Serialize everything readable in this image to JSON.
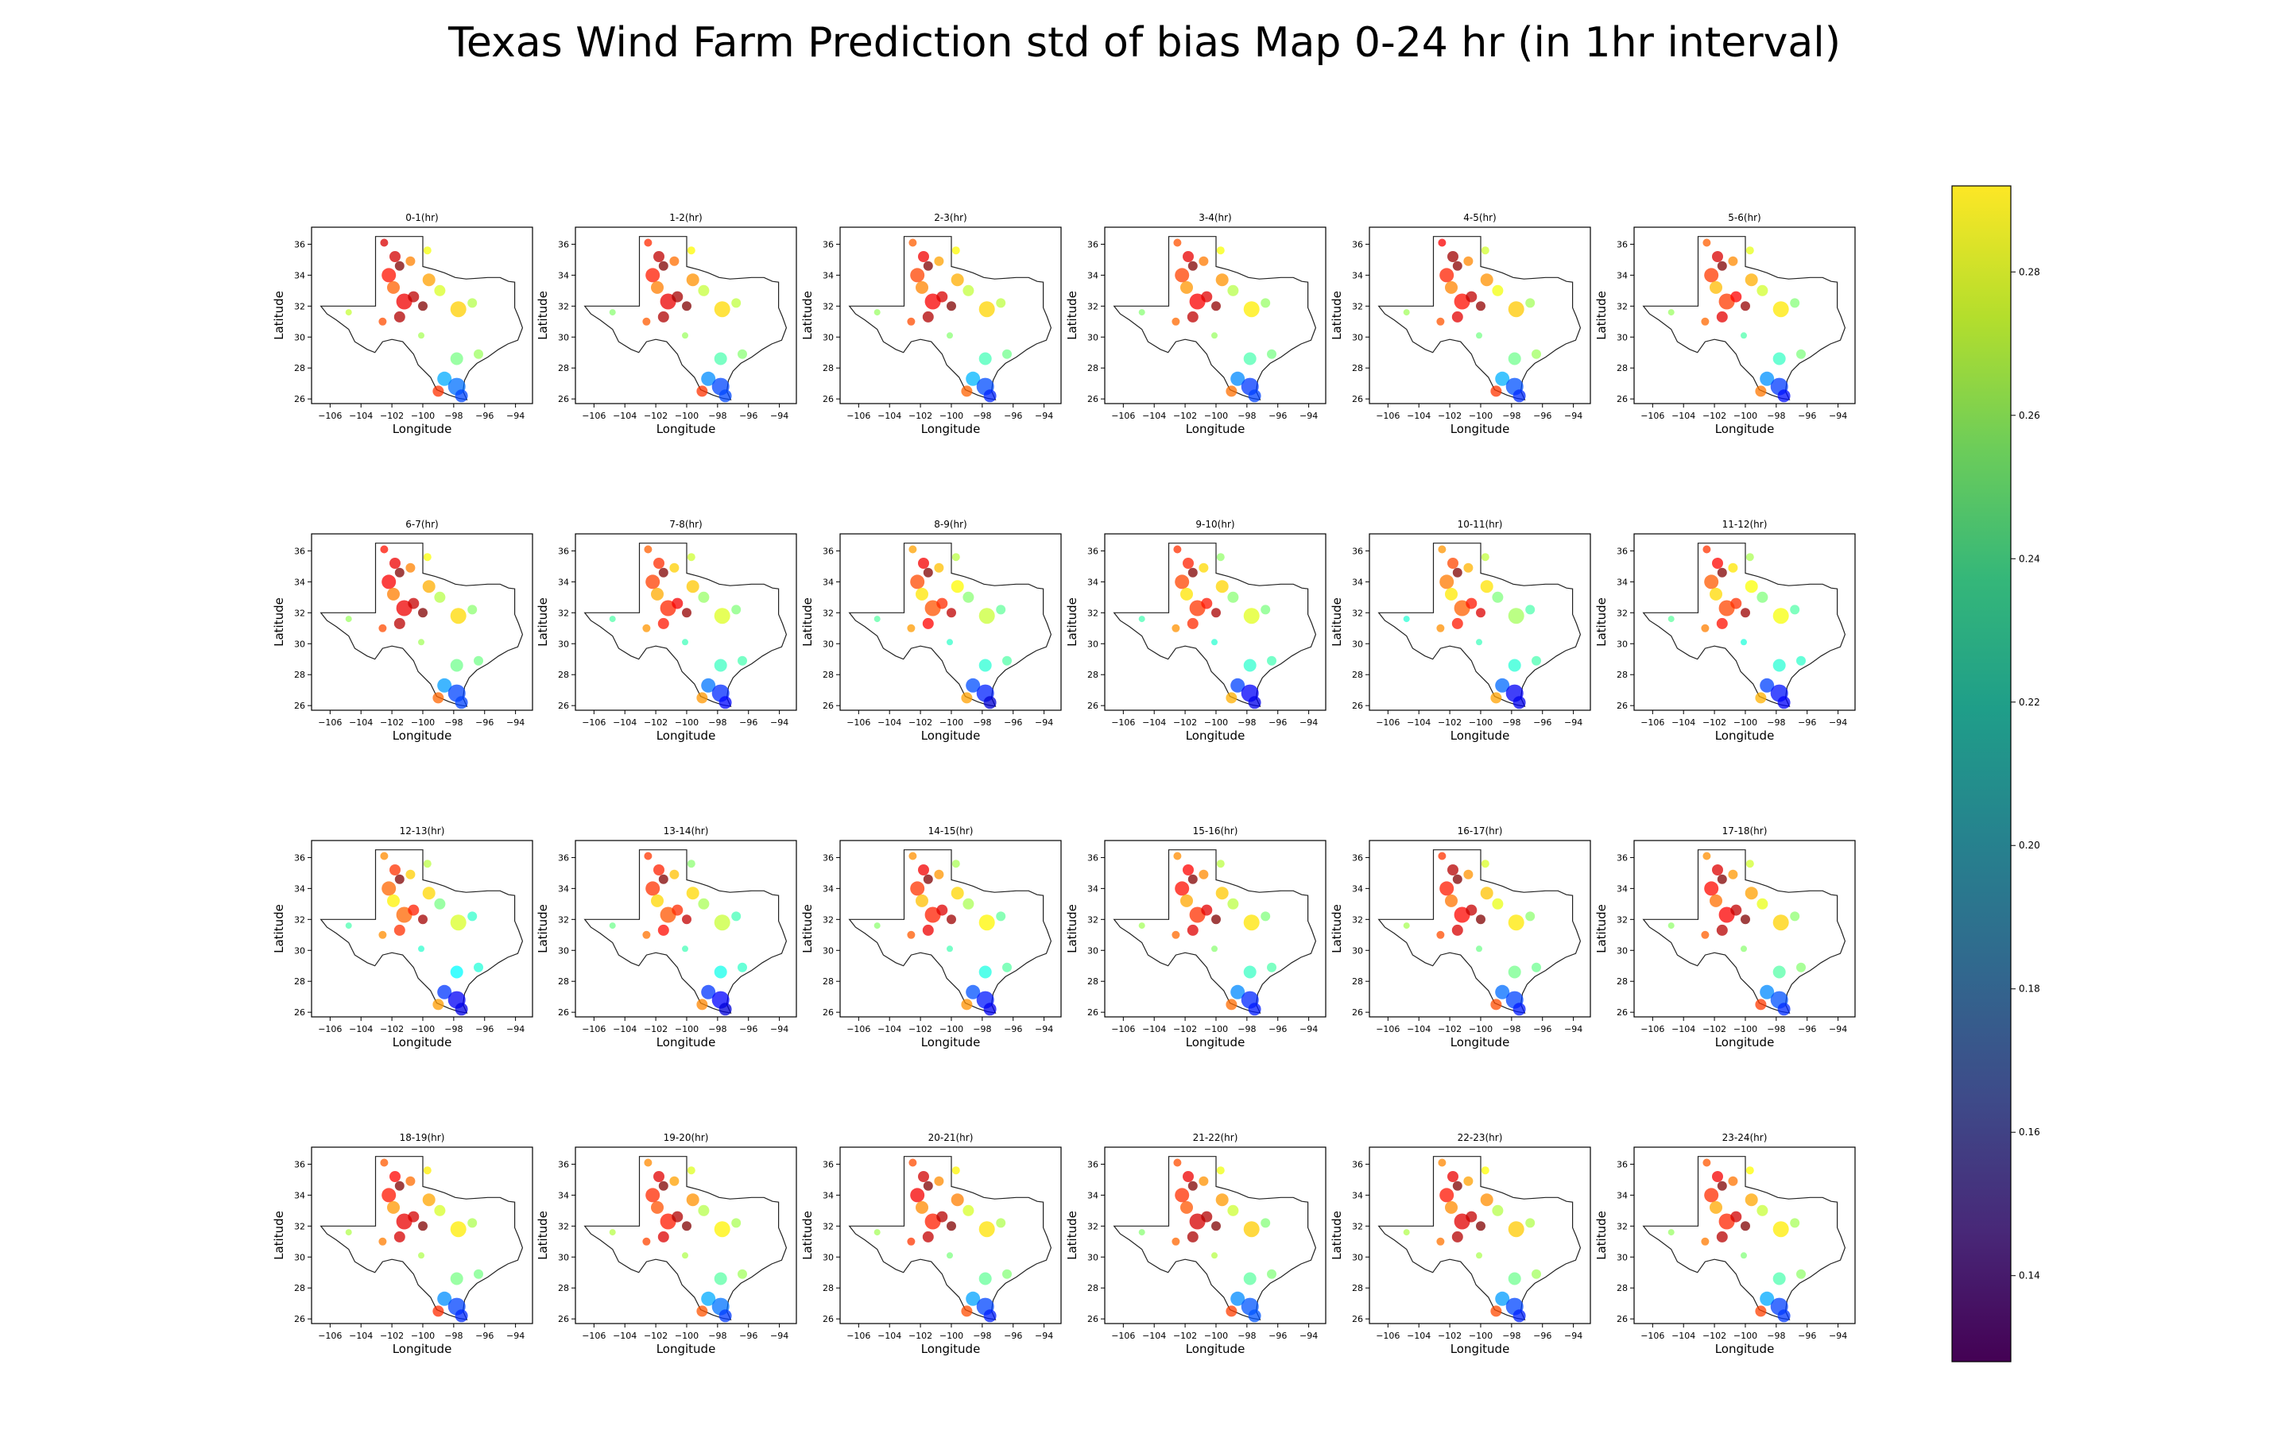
{
  "title": "Texas Wind Farm Prediction std of bias Map 0-24 hr (in 1hr interval)",
  "chart_data": {
    "type": "scatter",
    "layout": "grid 4 rows x 6 columns of map panels with shared colorbar on the right",
    "xlabel": "Longitude",
    "ylabel": "Latitude",
    "xlim": [
      -107.2,
      -92.9
    ],
    "ylim": [
      25.7,
      37.1
    ],
    "xticks": [
      -106,
      -104,
      -102,
      -100,
      -98,
      -96,
      -94
    ],
    "xtick_labels": [
      "−106",
      "−104",
      "−102",
      "−100",
      "−98",
      "−96",
      "−94"
    ],
    "yticks": [
      26,
      28,
      30,
      32,
      34,
      36
    ],
    "ytick_labels": [
      "26",
      "28",
      "30",
      "32",
      "34",
      "36"
    ],
    "colorbar": {
      "colormap": "viridis",
      "range": [
        0.128,
        0.292
      ],
      "ticks": [
        0.14,
        0.16,
        0.18,
        0.2,
        0.22,
        0.24,
        0.26,
        0.28
      ],
      "tick_labels": [
        "0.14",
        "0.16",
        "0.18",
        "0.20",
        "0.22",
        "0.24",
        "0.26",
        "0.28"
      ]
    },
    "marker_colormap": "jet",
    "grid": false,
    "panels": [
      "0-1(hr)",
      "1-2(hr)",
      "2-3(hr)",
      "3-4(hr)",
      "4-5(hr)",
      "5-6(hr)",
      "6-7(hr)",
      "7-8(hr)",
      "8-9(hr)",
      "9-10(hr)",
      "10-11(hr)",
      "11-12(hr)",
      "12-13(hr)",
      "13-14(hr)",
      "14-15(hr)",
      "15-16(hr)",
      "16-17(hr)",
      "17-18(hr)",
      "18-19(hr)",
      "19-20(hr)",
      "20-21(hr)",
      "21-22(hr)",
      "22-23(hr)",
      "23-24(hr)"
    ],
    "texas_outline": [
      [
        -103.0,
        36.5
      ],
      [
        -100.0,
        36.5
      ],
      [
        -100.0,
        34.56
      ],
      [
        -99.2,
        34.35
      ],
      [
        -98.6,
        34.15
      ],
      [
        -97.9,
        33.85
      ],
      [
        -97.2,
        33.75
      ],
      [
        -96.5,
        33.8
      ],
      [
        -95.8,
        33.85
      ],
      [
        -95.0,
        33.85
      ],
      [
        -94.45,
        33.6
      ],
      [
        -94.05,
        33.55
      ],
      [
        -94.05,
        31.9
      ],
      [
        -93.8,
        31.3
      ],
      [
        -93.55,
        30.6
      ],
      [
        -93.85,
        29.8
      ],
      [
        -94.5,
        29.55
      ],
      [
        -95.1,
        29.2
      ],
      [
        -95.8,
        28.7
      ],
      [
        -96.5,
        28.3
      ],
      [
        -97.0,
        27.8
      ],
      [
        -97.3,
        27.2
      ],
      [
        -97.4,
        26.5
      ],
      [
        -97.15,
        25.95
      ],
      [
        -97.7,
        26.05
      ],
      [
        -98.3,
        26.25
      ],
      [
        -99.1,
        26.6
      ],
      [
        -99.5,
        27.4
      ],
      [
        -100.3,
        28.2
      ],
      [
        -100.6,
        28.9
      ],
      [
        -101.3,
        29.7
      ],
      [
        -102.0,
        29.85
      ],
      [
        -102.6,
        29.7
      ],
      [
        -103.1,
        29.0
      ],
      [
        -103.6,
        29.2
      ],
      [
        -104.4,
        29.7
      ],
      [
        -104.8,
        30.5
      ],
      [
        -105.6,
        31.1
      ],
      [
        -106.2,
        31.5
      ],
      [
        -106.6,
        32.0
      ],
      [
        -103.06,
        32.0
      ],
      [
        -103.06,
        36.5
      ]
    ],
    "sites": [
      {
        "lon": -102.5,
        "lat": 36.1,
        "size": 10,
        "values": [
          0.2775,
          0.265,
          0.2565,
          0.2584,
          0.2725,
          0.2566,
          0.2687,
          0.2563,
          0.2456,
          0.2639,
          0.2474,
          0.2634,
          0.2493,
          0.2629,
          0.2484,
          0.2491,
          0.2634,
          0.2485,
          0.2572,
          0.2494,
          0.2595,
          0.2591,
          0.2499,
          0.2576
        ]
      },
      {
        "lon": -101.8,
        "lat": 35.2,
        "size": 14,
        "values": [
          0.2786,
          0.2818,
          0.2738,
          0.2752,
          0.2869,
          0.2775,
          0.2744,
          0.2645,
          0.2732,
          0.2664,
          0.2601,
          0.2708,
          0.2636,
          0.2664,
          0.2734,
          0.2712,
          0.2834,
          0.277,
          0.271,
          0.2762,
          0.2791,
          0.2743,
          0.2747,
          0.273
        ]
      },
      {
        "lon": -101.5,
        "lat": 34.6,
        "size": 12,
        "values": [
          0.3,
          0.3,
          0.3,
          0.3,
          0.2903,
          0.2973,
          0.3,
          0.3,
          0.2981,
          0.3,
          0.3,
          0.3,
          0.3,
          0.2992,
          0.3,
          0.3,
          0.3,
          0.3,
          0.3,
          0.3,
          0.3,
          0.3,
          0.3,
          0.3
        ]
      },
      {
        "lon": -102.2,
        "lat": 34.0,
        "size": 18,
        "values": [
          0.2687,
          0.2672,
          0.2608,
          0.2609,
          0.2664,
          0.2623,
          0.2723,
          0.2614,
          0.2598,
          0.2606,
          0.2521,
          0.2572,
          0.2554,
          0.2636,
          0.2634,
          0.2692,
          0.2674,
          0.2701,
          0.2679,
          0.2647,
          0.2729,
          0.2639,
          0.2684,
          0.2641
        ]
      },
      {
        "lon": -101.9,
        "lat": 33.2,
        "size": 16,
        "values": [
          0.2561,
          0.2513,
          0.2504,
          0.2476,
          0.2503,
          0.2415,
          0.2513,
          0.2441,
          0.2345,
          0.2349,
          0.2341,
          0.2364,
          0.2325,
          0.2369,
          0.2408,
          0.2447,
          0.2529,
          0.2537,
          0.2473,
          0.2583,
          0.2495,
          0.2577,
          0.2493,
          0.2445
        ]
      },
      {
        "lon": -101.2,
        "lat": 32.3,
        "size": 20,
        "values": [
          0.274,
          0.2747,
          0.2726,
          0.2724,
          0.2692,
          0.2621,
          0.2741,
          0.2656,
          0.2582,
          0.2628,
          0.2561,
          0.2604,
          0.2551,
          0.2579,
          0.2665,
          0.2638,
          0.2706,
          0.272,
          0.2749,
          0.2675,
          0.2669,
          0.2781,
          0.2764,
          0.2655
        ]
      },
      {
        "lon": -100.6,
        "lat": 32.6,
        "size": 14,
        "values": [
          0.282,
          0.2857,
          0.2778,
          0.2764,
          0.2817,
          0.2718,
          0.2806,
          0.2729,
          0.2647,
          0.2682,
          0.2679,
          0.264,
          0.2668,
          0.2646,
          0.2766,
          0.2759,
          0.2807,
          0.2812,
          0.2784,
          0.284,
          0.2831,
          0.2838,
          0.2811,
          0.2789
        ]
      },
      {
        "lon": -100.0,
        "lat": 32.0,
        "size": 12,
        "values": [
          0.2921,
          0.2931,
          0.2951,
          0.2893,
          0.2892,
          0.2884,
          0.2947,
          0.2887,
          0.2821,
          0.2856,
          0.2772,
          0.2876,
          0.2866,
          0.2814,
          0.2874,
          0.2922,
          0.2922,
          0.2962,
          0.3,
          0.2964,
          0.2936,
          0.2951,
          0.2965,
          0.2971
        ]
      },
      {
        "lon": -102.6,
        "lat": 31.0,
        "size": 10,
        "values": [
          0.2593,
          0.2569,
          0.2595,
          0.2548,
          0.2581,
          0.2549,
          0.2595,
          0.2476,
          0.2467,
          0.2482,
          0.2486,
          0.2511,
          0.249,
          0.2533,
          0.2572,
          0.2549,
          0.2593,
          0.2566,
          0.2517,
          0.2606,
          0.2628,
          0.2552,
          0.2531,
          0.2522
        ]
      },
      {
        "lon": -101.5,
        "lat": 31.3,
        "size": 14,
        "values": [
          0.284,
          0.2844,
          0.2842,
          0.2819,
          0.276,
          0.2758,
          0.2828,
          0.2681,
          0.2714,
          0.2648,
          0.2678,
          0.2691,
          0.2639,
          0.27,
          0.2742,
          0.2767,
          0.2779,
          0.2832,
          0.2781,
          0.2772,
          0.2812,
          0.285,
          0.2836,
          0.2832
        ]
      },
      {
        "lon": -99.6,
        "lat": 33.7,
        "size": 16,
        "values": [
          0.2458,
          0.2482,
          0.2438,
          0.2479,
          0.2483,
          0.2437,
          0.2437,
          0.2395,
          0.2311,
          0.2375,
          0.2351,
          0.2298,
          0.237,
          0.2368,
          0.2371,
          0.2394,
          0.2403,
          0.2459,
          0.2449,
          0.2481,
          0.2511,
          0.2469,
          0.2489,
          0.245
        ]
      },
      {
        "lon": -98.9,
        "lat": 33.0,
        "size": 14,
        "values": [
          0.2245,
          0.2211,
          0.2208,
          0.2188,
          0.2286,
          0.2233,
          0.2188,
          0.2138,
          0.2117,
          0.2117,
          0.2101,
          0.2103,
          0.2088,
          0.2166,
          0.2169,
          0.2196,
          0.2271,
          0.2271,
          0.2241,
          0.2185,
          0.2241,
          0.2223,
          0.2186,
          0.2215
        ]
      },
      {
        "lon": -97.7,
        "lat": 31.8,
        "size": 20,
        "values": [
          0.2382,
          0.2365,
          0.2374,
          0.2334,
          0.2393,
          0.2342,
          0.2366,
          0.2252,
          0.222,
          0.2257,
          0.2158,
          0.2292,
          0.2243,
          0.2217,
          0.2318,
          0.2348,
          0.2342,
          0.2378,
          0.2335,
          0.2325,
          0.2352,
          0.2387,
          0.2391,
          0.2335
        ]
      },
      {
        "lon": -96.8,
        "lat": 32.2,
        "size": 12,
        "values": [
          0.2184,
          0.2203,
          0.2198,
          0.2139,
          0.2158,
          0.2109,
          0.2123,
          0.2107,
          0.2055,
          0.2097,
          0.2024,
          0.2032,
          0.1978,
          0.2009,
          0.2051,
          0.2103,
          0.2124,
          0.2125,
          0.2173,
          0.2169,
          0.2177,
          0.2108,
          0.2181,
          0.2163
        ]
      },
      {
        "lon": -104.8,
        "lat": 31.6,
        "size": 8,
        "values": [
          0.2213,
          0.2119,
          0.2143,
          0.2116,
          0.2156,
          0.2146,
          0.2146,
          0.203,
          0.204,
          0.2015,
          0.1961,
          0.2048,
          0.2021,
          0.2076,
          0.2124,
          0.2158,
          0.2165,
          0.2131,
          0.2179,
          0.219,
          0.2159,
          0.2118,
          0.2179,
          0.2143
        ]
      },
      {
        "lon": -100.1,
        "lat": 30.1,
        "size": 8,
        "values": [
          0.2164,
          0.2147,
          0.2117,
          0.2144,
          0.2087,
          0.2026,
          0.2158,
          0.2004,
          0.1982,
          0.1969,
          0.2002,
          0.1953,
          0.1973,
          0.2009,
          0.2015,
          0.2119,
          0.2079,
          0.2121,
          0.2177,
          0.2178,
          0.2098,
          0.2189,
          0.2171,
          0.2107
        ]
      },
      {
        "lon": -97.8,
        "lat": 28.6,
        "size": 16,
        "values": [
          0.2088,
          0.2022,
          0.2009,
          0.2021,
          0.2076,
          0.1987,
          0.2078,
          0.1995,
          0.1964,
          0.1972,
          0.1962,
          0.1962,
          0.1892,
          0.1928,
          0.1941,
          0.199,
          0.2081,
          0.2035,
          0.2088,
          0.204,
          0.2059,
          0.2046,
          0.2074,
          0.2022
        ]
      },
      {
        "lon": -96.4,
        "lat": 28.9,
        "size": 12,
        "values": [
          0.2149,
          0.2118,
          0.2077,
          0.2088,
          0.2152,
          0.21,
          0.2082,
          0.2017,
          0.2033,
          0.2012,
          0.2018,
          0.1977,
          0.1955,
          0.1981,
          0.2039,
          0.2025,
          0.2072,
          0.2118,
          0.2087,
          0.2154,
          0.2111,
          0.2107,
          0.2156,
          0.213
        ]
      },
      {
        "lon": -98.6,
        "lat": 27.3,
        "size": 18,
        "values": [
          0.1759,
          0.171,
          0.1775,
          0.1706,
          0.1767,
          0.1717,
          0.1739,
          0.1672,
          0.1608,
          0.1593,
          0.1654,
          0.159,
          0.1573,
          0.1572,
          0.1614,
          0.1705,
          0.1658,
          0.1705,
          0.1713,
          0.1759,
          0.1746,
          0.1707,
          0.1736,
          0.1758
        ]
      },
      {
        "lon": -97.8,
        "lat": 26.8,
        "size": 22,
        "values": [
          0.1665,
          0.1595,
          0.1607,
          0.1575,
          0.1617,
          0.1579,
          0.1594,
          0.1554,
          0.1539,
          0.1479,
          0.147,
          0.1513,
          0.1472,
          0.1486,
          0.1524,
          0.1547,
          0.1592,
          0.1615,
          0.1592,
          0.1669,
          0.1597,
          0.1621,
          0.1597,
          0.1588
        ]
      },
      {
        "lon": -97.5,
        "lat": 26.2,
        "size": 16,
        "values": [
          0.1597,
          0.1601,
          0.1541,
          0.1592,
          0.1553,
          0.1508,
          0.1592,
          0.1493,
          0.1414,
          0.145,
          0.1457,
          0.1476,
          0.1444,
          0.1422,
          0.1461,
          0.1526,
          0.1526,
          0.1554,
          0.155,
          0.1578,
          0.1531,
          0.1622,
          0.1537,
          0.1574
        ]
      },
      {
        "lon": -99.0,
        "lat": 26.5,
        "size": 14,
        "values": [
          0.2636,
          0.2634,
          0.256,
          0.2537,
          0.263,
          0.2525,
          0.2553,
          0.2473,
          0.2459,
          0.2434,
          0.2456,
          0.2429,
          0.2464,
          0.2502,
          0.2481,
          0.2544,
          0.2594,
          0.2624,
          0.2646,
          0.258,
          0.2594,
          0.2615,
          0.2596,
          0.2612
        ]
      },
      {
        "lon": -99.7,
        "lat": 35.6,
        "size": 10,
        "values": [
          0.2287,
          0.2312,
          0.2312,
          0.2294,
          0.2231,
          0.2266,
          0.2298,
          0.2224,
          0.2194,
          0.2132,
          0.2205,
          0.2169,
          0.2195,
          0.2121,
          0.2167,
          0.2196,
          0.2246,
          0.2233,
          0.2334,
          0.2254,
          0.2319,
          0.228,
          0.2305,
          0.2307
        ]
      },
      {
        "lon": -100.8,
        "lat": 34.9,
        "size": 12,
        "values": [
          0.2508,
          0.2541,
          0.2456,
          0.2519,
          0.2499,
          0.2494,
          0.2507,
          0.2383,
          0.2408,
          0.2364,
          0.2428,
          0.2345,
          0.2386,
          0.2407,
          0.2474,
          0.2496,
          0.248,
          0.2472,
          0.2542,
          0.2459,
          0.2492,
          0.2482,
          0.2458,
          0.2531
        ]
      }
    ]
  }
}
